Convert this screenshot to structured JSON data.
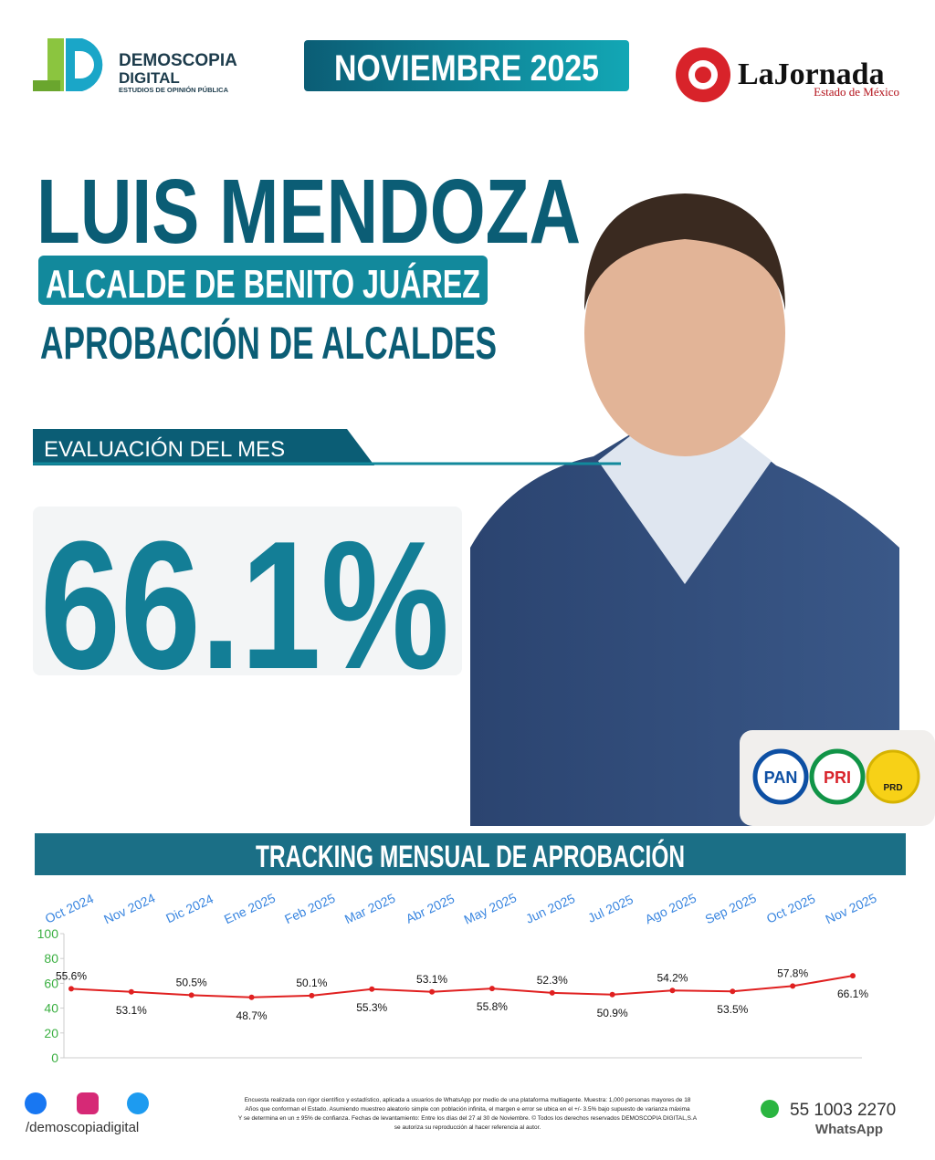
{
  "header": {
    "brand": "DEMOSCOPIA",
    "brand2": "DIGITAL",
    "brand_sub": "ESTUDIOS DE OPINIÓN PÚBLICA",
    "date": "NOVIEMBRE 2025",
    "partner": "LaJornada",
    "partner_sub": "Estado de México"
  },
  "hero": {
    "name": "LUIS MENDOZA",
    "role": "ALCALDE DE BENITO JUÁREZ",
    "topic": "APROBACIÓN DE ALCALDES",
    "eval_label": "EVALUACIÓN DEL MES",
    "eval_value": "66.1%"
  },
  "parties": [
    "PAN",
    "PRI",
    "PRD"
  ],
  "chart_data": {
    "type": "line",
    "title": "TRACKING MENSUAL DE APROBACIÓN",
    "categories": [
      "Oct 2024",
      "Nov 2024",
      "Dic 2024",
      "Ene 2025",
      "Feb 2025",
      "Mar 2025",
      "Abr 2025",
      "May 2025",
      "Jun 2025",
      "Jul 2025",
      "Ago 2025",
      "Sep 2025",
      "Oct 2025",
      "Nov 2025"
    ],
    "values": [
      55.6,
      53.1,
      50.5,
      48.7,
      50.1,
      55.3,
      53.1,
      55.8,
      52.3,
      50.9,
      54.2,
      53.5,
      57.8,
      66.1
    ],
    "value_labels": [
      "55.6%",
      "53.1%",
      "50.5%",
      "48.7%",
      "50.1%",
      "55.3%",
      "53.1%",
      "55.8%",
      "52.3%",
      "50.9%",
      "54.2%",
      "53.5%",
      "57.8%",
      "66.1%"
    ],
    "color": "#e02020",
    "ylim": [
      0,
      100
    ],
    "yticks": [
      0,
      20,
      40,
      60,
      80,
      100
    ],
    "grid": false
  },
  "footer": {
    "social": "/demoscopiadigital",
    "disclaimer": [
      "Encuesta realizada con rigor científico y estadístico, aplicada a usuarios de WhatsApp por medio de una plataforma multiagente. Muestra: 1,000 personas mayores de 18",
      "Años que conforman el Estado. Asumiendo muestreo aleatorio simple con población infinita, el margen e error se ubica en el +/- 3.5% bajo supuesto de varianza máxima",
      "Y se determina en un ± 95% de confianza. Fechas de levantamiento: Entre los días del 27 al 30 de Noviembre. © Todos los derechos reservados DEMOSCOPIA DIGITAL,S.A",
      "se autoriza su reproducción al hacer referencia al autor."
    ],
    "phone": "55 1003 2270",
    "phone_sub": "WhatsApp"
  }
}
